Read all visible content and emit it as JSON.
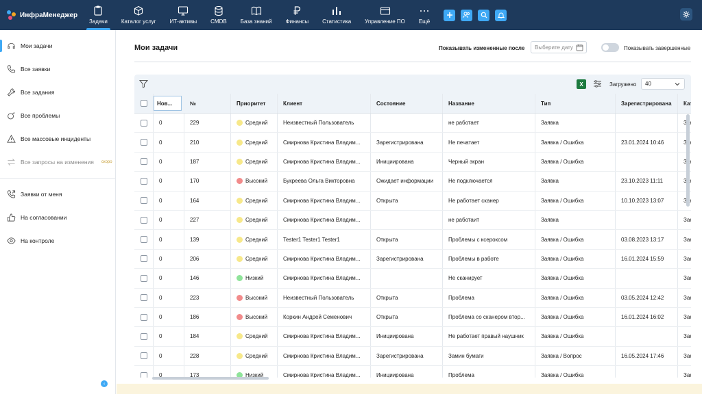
{
  "brand": {
    "name": "ИнфраМенеджер"
  },
  "nav": [
    {
      "label": "Задачи",
      "icon": "clipboard-icon",
      "active": true
    },
    {
      "label": "Каталог услуг",
      "icon": "cube-icon"
    },
    {
      "label": "ИТ-активы",
      "icon": "monitor-icon"
    },
    {
      "label": "CMDB",
      "icon": "database-icon"
    },
    {
      "label": "База знаний",
      "icon": "book-icon"
    },
    {
      "label": "Финансы",
      "icon": "ruble-icon"
    },
    {
      "label": "Статистика",
      "icon": "bar-chart-icon"
    },
    {
      "label": "Управление ПО",
      "icon": "window-icon"
    },
    {
      "label": "Ещё",
      "icon": "more-icon"
    }
  ],
  "sidebar": {
    "groups": [
      [
        {
          "label": "Мои задачи",
          "icon": "headset-icon",
          "active": true
        },
        {
          "label": "Все заявки",
          "icon": "phone-icon"
        },
        {
          "label": "Все задания",
          "icon": "wrench-icon"
        },
        {
          "label": "Все проблемы",
          "icon": "bomb-icon"
        },
        {
          "label": "Все массовые инциденты",
          "icon": "warning-icon"
        },
        {
          "label": "Все запросы на изменения",
          "icon": "swap-icon",
          "disabled": true,
          "badge": "скоро"
        }
      ],
      [
        {
          "label": "Заявки от меня",
          "icon": "phone-out-icon"
        },
        {
          "label": "На согласовании",
          "icon": "thumbs-up-icon"
        },
        {
          "label": "На контроле",
          "icon": "eye-icon"
        }
      ]
    ]
  },
  "main": {
    "title": "Мои задачи",
    "filter_label": "Показывать измененные после",
    "date_placeholder": "Выберите дату",
    "toggle_label": "Показывать завершенные",
    "loaded_label": "Загружено",
    "loaded_value": "40",
    "excel_label": "X"
  },
  "colors": {
    "high": "#f28b8b",
    "medium": "#f7e88a",
    "low": "#8fe39a",
    "accent": "#3fa9f5",
    "topbar": "#1e3a5c"
  },
  "table": {
    "headers": [
      "Нов...",
      "№",
      "Приоритет",
      "Клиент",
      "Состояние",
      "Название",
      "Тип",
      "Зарегистрирована",
      "Катего"
    ],
    "rows": [
      {
        "new": "0",
        "num": "229",
        "prio": "Средний",
        "prio_level": "medium",
        "client": "Неизвестный Пользователь",
        "state": "",
        "name": "не работает",
        "type": "Заявка",
        "reg": "",
        "cat": "Заяв"
      },
      {
        "new": "0",
        "num": "210",
        "prio": "Средний",
        "prio_level": "medium",
        "client": "Смирнова Кристина Владим...",
        "state": "Зарегистрирована",
        "name": "Не печатает",
        "type": "Заявка / Ошибка",
        "reg": "23.01.2024 10:46",
        "cat": "Заяв"
      },
      {
        "new": "0",
        "num": "187",
        "prio": "Средний",
        "prio_level": "medium",
        "client": "Смирнова Кристина Владим...",
        "state": "Инициирована",
        "name": "Черный экран",
        "type": "Заявка / Ошибка",
        "reg": "",
        "cat": "Заяв"
      },
      {
        "new": "0",
        "num": "170",
        "prio": "Высокий",
        "prio_level": "high",
        "client": "Букреева Ольга Викторовна",
        "state": "Ожидает информации",
        "name": "Не подключается",
        "type": "Заявка",
        "reg": "23.10.2023 11:11",
        "cat": "Заяв"
      },
      {
        "new": "0",
        "num": "164",
        "prio": "Средний",
        "prio_level": "medium",
        "client": "Смирнова Кристина Владим...",
        "state": "Открыта",
        "name": "Не работает сканер",
        "type": "Заявка / Ошибка",
        "reg": "10.10.2023 13:07",
        "cat": "Заяв"
      },
      {
        "new": "0",
        "num": "227",
        "prio": "Средний",
        "prio_level": "medium",
        "client": "Смирнова Кристина Владим...",
        "state": "",
        "name": "не работаит",
        "type": "Заявка",
        "reg": "",
        "cat": "Заяв"
      },
      {
        "new": "0",
        "num": "139",
        "prio": "Средний",
        "prio_level": "medium",
        "client": "Tester1 Tester1 Tester1",
        "state": "Открыта",
        "name": "Проблемы с ксероксом",
        "type": "Заявка / Ошибка",
        "reg": "03.08.2023 13:17",
        "cat": "Заяв"
      },
      {
        "new": "0",
        "num": "206",
        "prio": "Средний",
        "prio_level": "medium",
        "client": "Смирнова Кристина Владим...",
        "state": "Зарегистрирована",
        "name": "Проблемы в работе",
        "type": "Заявка / Ошибка",
        "reg": "16.01.2024 15:59",
        "cat": "Заяв"
      },
      {
        "new": "0",
        "num": "146",
        "prio": "Низкий",
        "prio_level": "low",
        "client": "Смирнова Кристина Владим...",
        "state": "",
        "name": "Не сканирует",
        "type": "Заявка / Ошибка",
        "reg": "",
        "cat": "Заяв"
      },
      {
        "new": "0",
        "num": "223",
        "prio": "Высокий",
        "prio_level": "high",
        "client": "Неизвестный Пользователь",
        "state": "Открыта",
        "name": "Проблема",
        "type": "Заявка / Ошибка",
        "reg": "03.05.2024 12:42",
        "cat": "Заяв"
      },
      {
        "new": "0",
        "num": "186",
        "prio": "Высокий",
        "prio_level": "high",
        "client": "Коркин Андрей Семенович",
        "state": "Открыта",
        "name": "Проблема со сканером втор...",
        "type": "Заявка / Ошибка",
        "reg": "16.01.2024 16:02",
        "cat": "Заяв"
      },
      {
        "new": "0",
        "num": "184",
        "prio": "Средний",
        "prio_level": "medium",
        "client": "Смирнова Кристина Владим...",
        "state": "Инициирована",
        "name": "Не работает правый наушник",
        "type": "Заявка / Ошибка",
        "reg": "",
        "cat": "Заяв"
      },
      {
        "new": "0",
        "num": "228",
        "prio": "Средний",
        "prio_level": "medium",
        "client": "Смирнова Кристина Владим...",
        "state": "Зарегистрирована",
        "name": "Замин бумаги",
        "type": "Заявка / Вопрос",
        "reg": "16.05.2024 17:46",
        "cat": "Заяв"
      },
      {
        "new": "0",
        "num": "173",
        "prio": "Низкий",
        "prio_level": "low",
        "client": "Смирнова Кристина Владим...",
        "state": "Инициирована",
        "name": "Проблема",
        "type": "Заявка / Ошибка",
        "reg": "",
        "cat": "Заяв"
      }
    ]
  }
}
